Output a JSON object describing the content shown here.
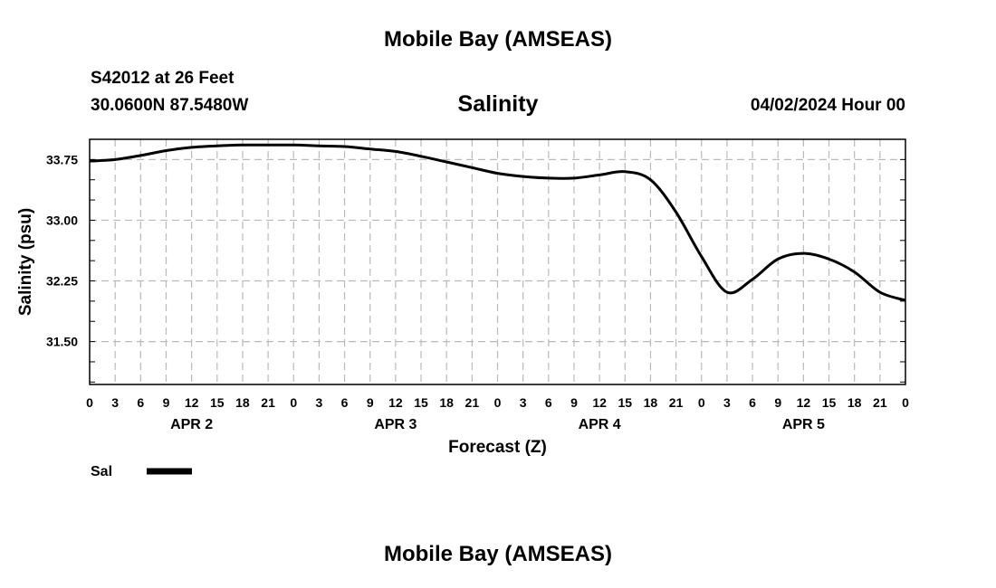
{
  "page": {
    "top_title": "Mobile Bay (AMSEAS)",
    "bottom_title": "Mobile Bay (AMSEAS)",
    "station_line": "S42012 at 26 Feet",
    "coords_line": "30.0600N  87.5480W",
    "forecast_time": "04/02/2024 Hour 00"
  },
  "chart_data": {
    "type": "line",
    "title": "Salinity",
    "xlabel": "Forecast (Z)",
    "ylabel": "Salinity (psu)",
    "x_unit": "hours since 04/02/2024 00Z",
    "xlim": [
      0,
      96
    ],
    "ylim": [
      30.97,
      34.0
    ],
    "yticks": [
      31.5,
      32.25,
      33.0,
      33.75
    ],
    "ytick_labels": [
      "31.50",
      "32.25",
      "33.00",
      "33.75"
    ],
    "xtick_labels": [
      "0",
      "3",
      "6",
      "9",
      "12",
      "15",
      "18",
      "21",
      "0",
      "3",
      "6",
      "9",
      "12",
      "15",
      "18",
      "21",
      "0",
      "3",
      "6",
      "9",
      "12",
      "15",
      "18",
      "21",
      "0",
      "3",
      "6",
      "9",
      "12",
      "15",
      "18",
      "21",
      "0"
    ],
    "day_labels": [
      "APR 2",
      "APR 3",
      "APR 4",
      "APR 5"
    ],
    "grid": true,
    "legend_position": "bottom-left",
    "series": [
      {
        "name": "Sal",
        "color": "#000000",
        "x": [
          0,
          3,
          6,
          9,
          12,
          15,
          18,
          21,
          24,
          27,
          30,
          33,
          36,
          39,
          42,
          45,
          48,
          51,
          54,
          57,
          60,
          63,
          66,
          69,
          72,
          75,
          78,
          81,
          84,
          87,
          90,
          93,
          96
        ],
        "values": [
          33.73,
          33.75,
          33.8,
          33.86,
          33.9,
          33.92,
          33.93,
          33.93,
          33.93,
          33.92,
          33.91,
          33.88,
          33.85,
          33.79,
          33.72,
          33.65,
          33.58,
          33.54,
          33.52,
          33.52,
          33.56,
          33.6,
          33.5,
          33.1,
          32.55,
          32.11,
          32.27,
          32.52,
          32.59,
          32.52,
          32.36,
          32.11,
          32.01
        ]
      }
    ]
  }
}
